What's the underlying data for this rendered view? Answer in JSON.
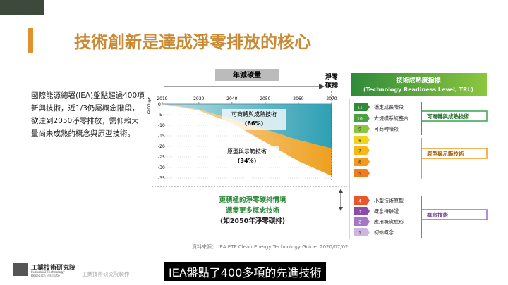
{
  "header": {
    "title": "技術創新是達成淨零排放的核心"
  },
  "body": {
    "text": "國際能源總署(IEA)盤點超過400項新興技術，近1/3仍屬概念階段，欲達到2050淨零排放，需仰賴大量尚未成熟的概念與原型技術。"
  },
  "chart_data": {
    "type": "area",
    "top_label": "年減碳量",
    "end_label": "淨零碳排",
    "y_label": "GtCO₂/yr",
    "x": [
      2019,
      2030,
      2040,
      2050,
      2060,
      2070
    ],
    "xlim": [
      2019,
      2070
    ],
    "xticks": [
      2019,
      2030,
      2040,
      2050,
      2060,
      2070
    ],
    "ylim": [
      -35,
      0
    ],
    "yticks": [
      0,
      -5,
      -10,
      -15,
      -20,
      -25,
      -30,
      -35
    ],
    "series": [
      {
        "name": "可商轉與成熟技術",
        "share": "(66%)",
        "color": "#2e9fb3",
        "values": [
          0,
          -2.5,
          -7,
          -12,
          -17,
          -21
        ]
      },
      {
        "name": "原型與示範技術",
        "share": "(34%)",
        "color": "#eea020",
        "values": [
          0,
          -0.5,
          -2,
          -6,
          -10,
          -13
        ]
      }
    ]
  },
  "scenario": {
    "line1": "更積極的淨零碳排情境",
    "line2": "還需更多概念技術",
    "line3": "(如2050年淨零碳排)"
  },
  "trl": {
    "title": "技術成熟度指標",
    "subtitle": "(Technology Readiness Level, TRL)",
    "levels": [
      {
        "level": 11,
        "label": "穩定成長階段",
        "color": "#2f8a3a"
      },
      {
        "level": 10,
        "label": "大規模系統整合",
        "color": "#4aa13f"
      },
      {
        "level": 9,
        "label": "可商轉階段",
        "color": "#8cc63f"
      },
      {
        "level": 8,
        "color": "#f2d21c"
      },
      {
        "level": 7,
        "color": "#f5b818"
      },
      {
        "level": 6,
        "color": "#f39a1e"
      },
      {
        "level": 5,
        "color": "#ef7d1e"
      },
      {
        "level": 4,
        "label": "小型技術原型",
        "color": "#e8562a"
      },
      {
        "level": 3,
        "label": "概念待驗證",
        "color": "#8e4aa8"
      },
      {
        "level": 2,
        "label": "應用概念成形",
        "color": "#a677c4"
      },
      {
        "level": 1,
        "label": "初始概念",
        "color": "#cdb5e0"
      }
    ],
    "groups": [
      {
        "label": "可商轉與成熟技術",
        "color": "#3aa34a"
      },
      {
        "label": "原型與示範技術",
        "color": "#f39a1e"
      },
      {
        "label": "概念技術",
        "color": "#9b6bc0"
      }
    ]
  },
  "source": "資料來源： IEA ETP Clean Energy Technology Guide, 2020/07/02",
  "footer": {
    "org": "工業技術研究院",
    "org_en": "Industrial Technology Research Institute",
    "credit": "工業技術研究院製作",
    "caption": "IEA盤點了400多項的先進技術"
  }
}
